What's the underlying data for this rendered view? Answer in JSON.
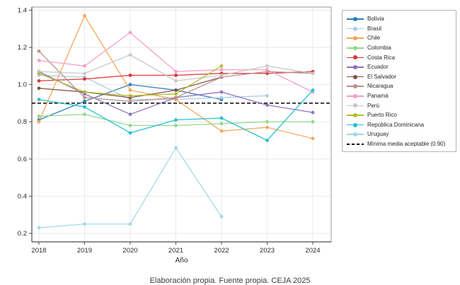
{
  "caption": "Elaboración propia. Fuente propia. CEJA 2025",
  "chart_data": {
    "type": "line",
    "title": "",
    "xlabel": "Año",
    "ylabel": "",
    "x": [
      2018,
      2019,
      2020,
      2021,
      2022,
      2023,
      2024
    ],
    "yticks": [
      "0.2",
      "0.4",
      "0.6",
      "0.8",
      "1.0",
      "1.2",
      "1.4"
    ],
    "ytick_values": [
      0.2,
      0.4,
      0.6,
      0.8,
      1.0,
      1.2,
      1.4
    ],
    "ylim": [
      0.15,
      1.45
    ],
    "grid": true,
    "legend_position": "right",
    "series": [
      {
        "name": "Bolivia",
        "color": "#2d7bb5",
        "values": [
          0.81,
          0.91,
          1.0,
          0.97,
          0.92,
          null,
          null
        ]
      },
      {
        "name": "Brasil",
        "color": "#a8cee2",
        "values": [
          1.05,
          1.04,
          0.92,
          0.92,
          0.93,
          0.94,
          null
        ]
      },
      {
        "name": "Chile",
        "color": "#f5a55a",
        "values": [
          0.8,
          1.37,
          0.97,
          0.92,
          0.75,
          0.77,
          0.71
        ]
      },
      {
        "name": "Colombia",
        "color": "#8ed98b",
        "values": [
          0.83,
          0.84,
          0.78,
          0.78,
          0.79,
          0.8,
          0.8
        ]
      },
      {
        "name": "Costa Rica",
        "color": "#d93236",
        "values": [
          1.02,
          1.03,
          1.05,
          1.05,
          1.06,
          1.06,
          1.07
        ]
      },
      {
        "name": "Ecuador",
        "color": "#8e6fbd",
        "values": [
          1.07,
          0.95,
          0.84,
          0.93,
          0.96,
          0.89,
          0.85
        ]
      },
      {
        "name": "El Salvador",
        "color": "#7e5147",
        "values": [
          0.98,
          0.96,
          0.93,
          0.97,
          1.04,
          null,
          null
        ]
      },
      {
        "name": "Nicaragua",
        "color": "#bd8e88",
        "values": [
          1.18,
          0.93,
          0.91,
          0.93,
          1.04,
          1.07,
          1.06
        ]
      },
      {
        "name": "Panamá",
        "color": "#f49bc6",
        "values": [
          1.13,
          1.1,
          1.28,
          1.07,
          1.08,
          1.08,
          0.96
        ]
      },
      {
        "name": "Perú",
        "color": "#c6c6c6",
        "values": [
          1.07,
          1.06,
          1.16,
          1.02,
          1.05,
          1.1,
          1.06
        ]
      },
      {
        "name": "Puerto Rico",
        "color": "#b3bd2d",
        "values": [
          1.06,
          0.96,
          0.94,
          0.95,
          1.1,
          null,
          null
        ]
      },
      {
        "name": "República Dominicana",
        "color": "#22bfcf",
        "values": [
          0.92,
          0.88,
          0.74,
          0.81,
          0.82,
          0.7,
          0.97
        ]
      },
      {
        "name": "Uruguay",
        "color": "#9ed9e5",
        "values": [
          0.23,
          0.25,
          0.25,
          0.66,
          0.29,
          null,
          null
        ]
      }
    ],
    "reference_line": {
      "label": "Mínima media aceptable (0.90)",
      "value": 0.9,
      "style": "dashed",
      "color": "#000000"
    }
  }
}
